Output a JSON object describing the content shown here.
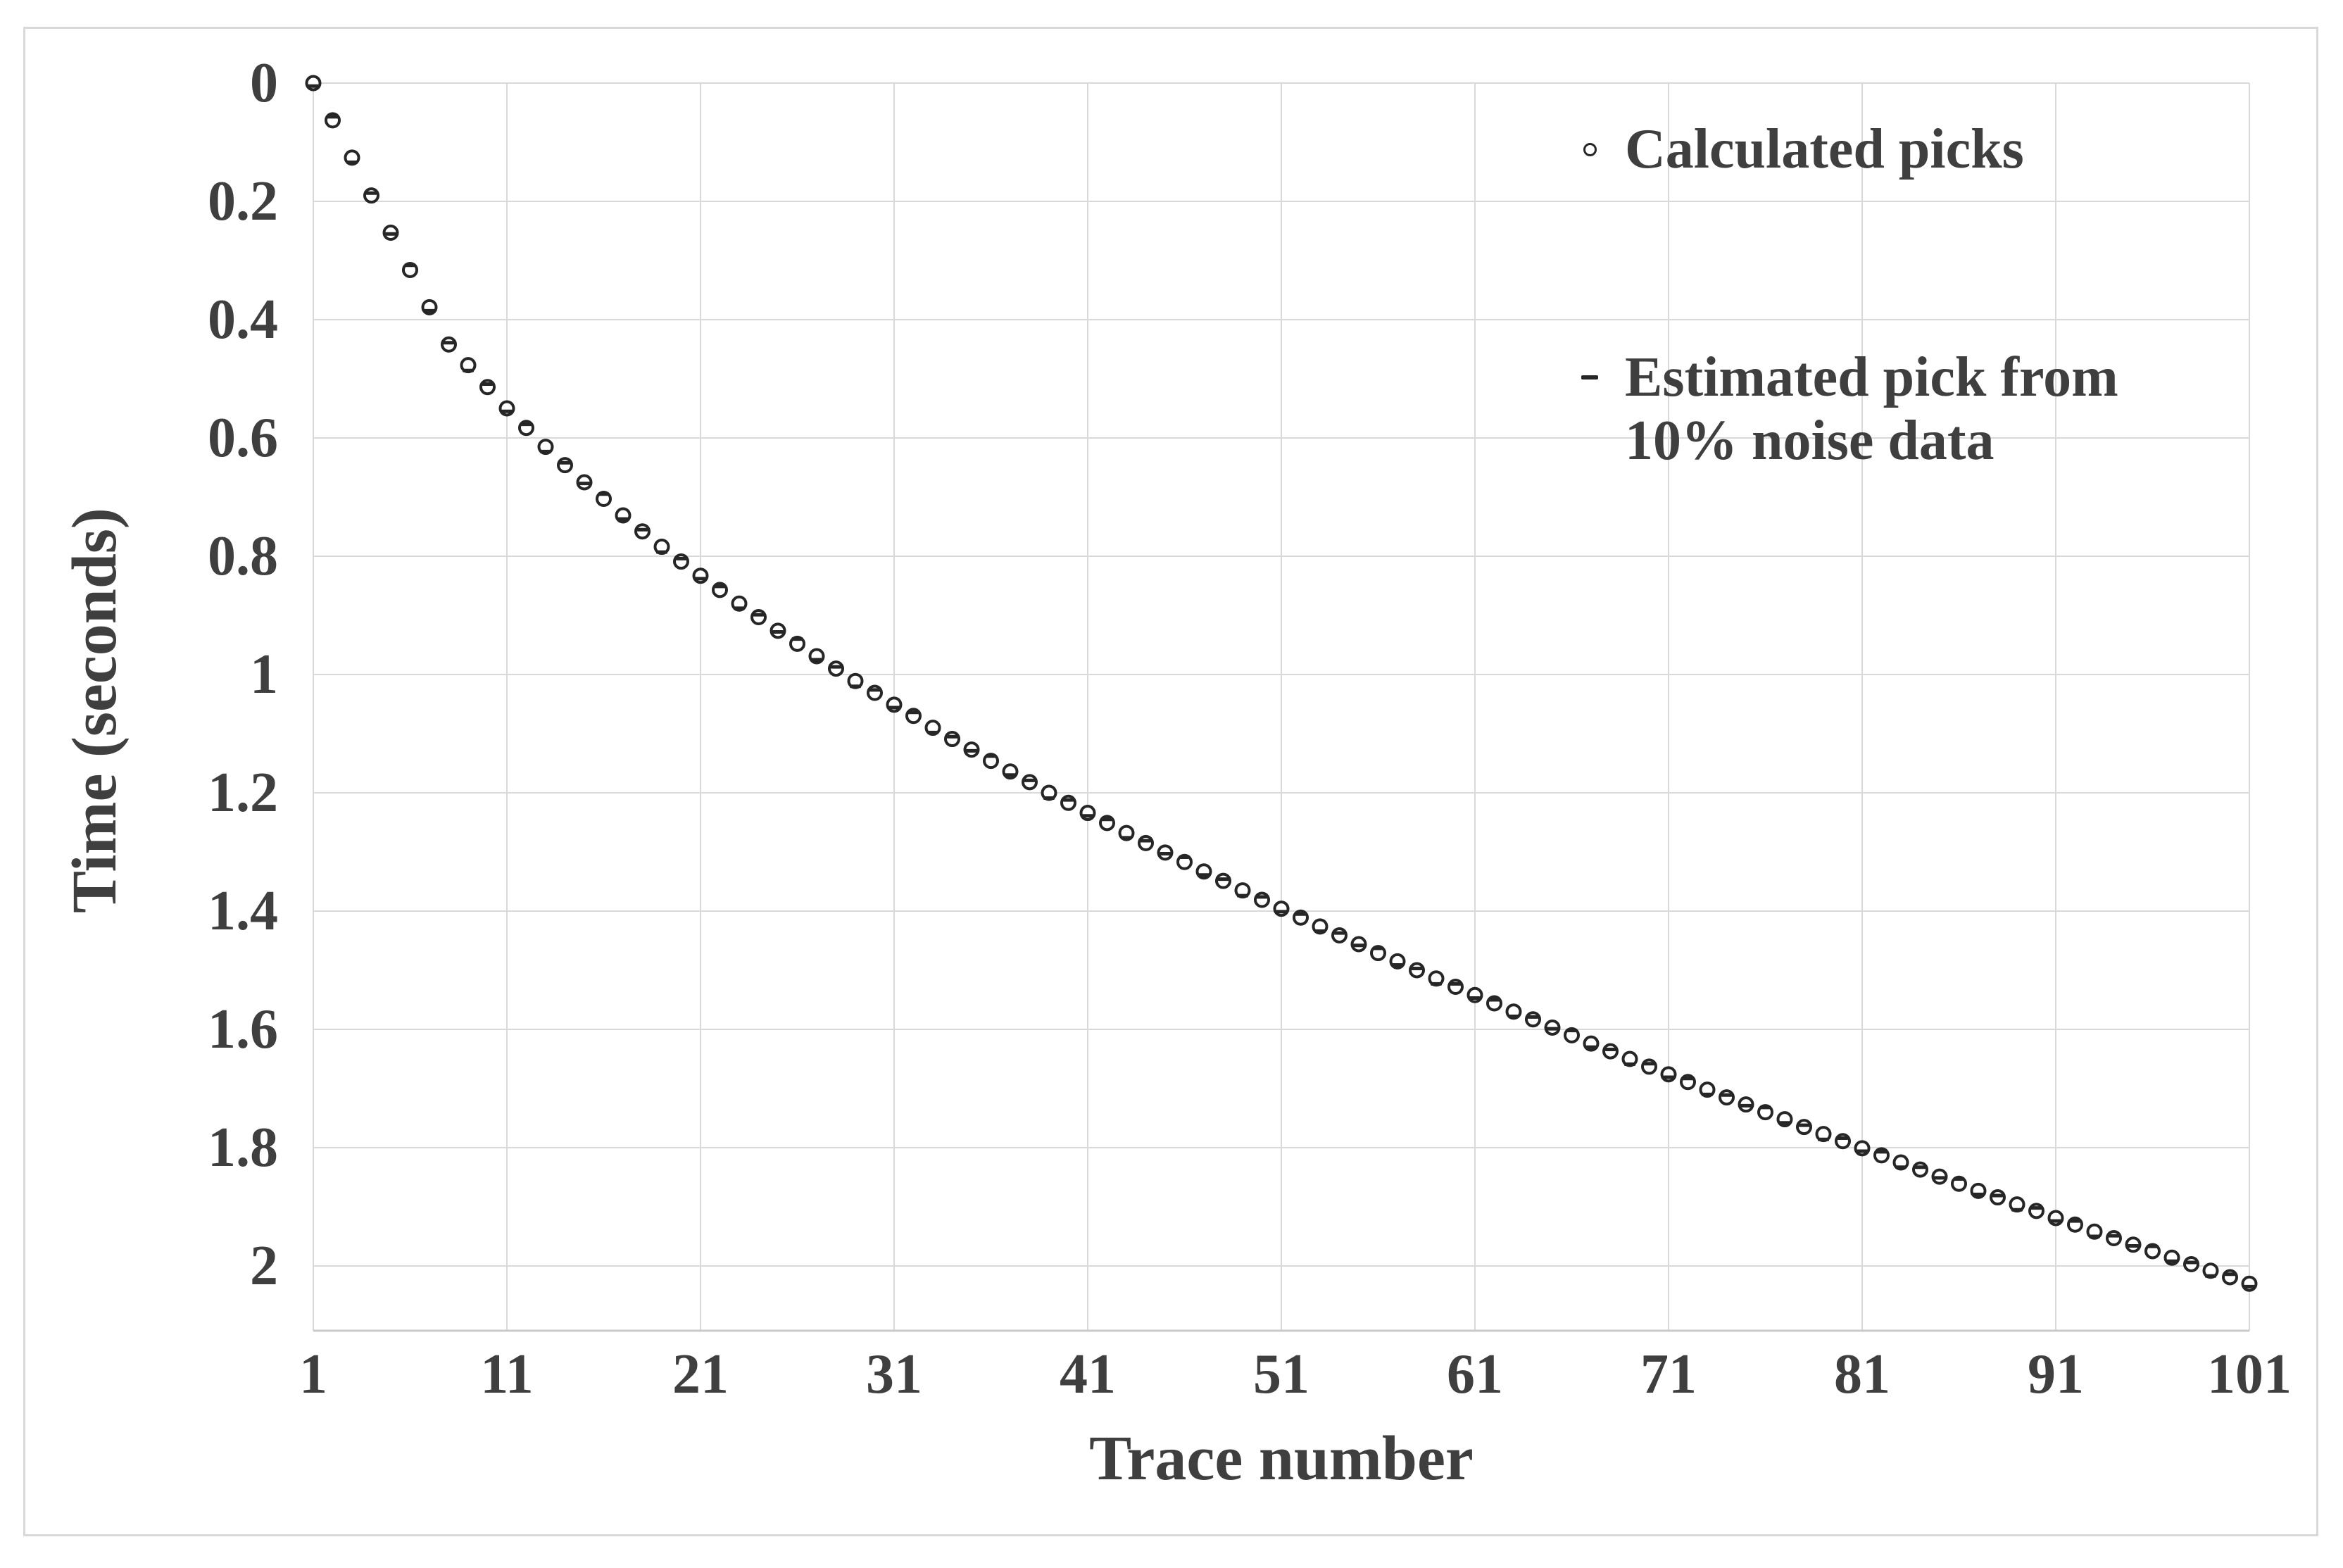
{
  "colors": {
    "background": "#ffffff",
    "frame_border": "#d9d9d9",
    "gridline": "#d9d9d9",
    "axis_line": "#c9c9c9",
    "marker": "#262626",
    "text": "#3f3f3f"
  },
  "legend": {
    "position": "inside top-right",
    "items": [
      {
        "marker": "open-circle",
        "label": "Calculated picks"
      },
      {
        "marker": "dash",
        "label_line1": "Estimated pick from",
        "label_line2": "10% noise data"
      }
    ]
  },
  "chart_data": {
    "type": "scatter",
    "title": "",
    "xlabel": "Trace number",
    "ylabel": "Time (seconds)",
    "grid": "on",
    "legend_position": "inside top-right",
    "x_range": [
      1,
      101
    ],
    "y_range": [
      0,
      2.12
    ],
    "y_axis_direction": "reversed (time increases downward)",
    "x_tick_values": [
      1,
      11,
      21,
      31,
      41,
      51,
      61,
      71,
      81,
      91,
      101
    ],
    "x_tick_labels": [
      "1",
      "11",
      "21",
      "31",
      "41",
      "51",
      "61",
      "71",
      "81",
      "91",
      "101"
    ],
    "y_tick_values": [
      0,
      0.2,
      0.4,
      0.6,
      0.8,
      1,
      1.2,
      1.4,
      1.6,
      1.8,
      2
    ],
    "y_tick_labels": [
      "0",
      "0.2",
      "0.4",
      "0.6",
      "0.8",
      "1",
      "1.2",
      "1.4",
      "1.6",
      "1.8",
      "2"
    ],
    "trace_numbers": [
      1,
      2,
      3,
      4,
      5,
      6,
      7,
      8,
      9,
      10,
      11,
      12,
      13,
      14,
      15,
      16,
      17,
      18,
      19,
      20,
      21,
      22,
      23,
      24,
      25,
      26,
      27,
      28,
      29,
      30,
      31,
      32,
      33,
      34,
      35,
      36,
      37,
      38,
      39,
      40,
      41,
      42,
      43,
      44,
      45,
      46,
      47,
      48,
      49,
      50,
      51,
      52,
      53,
      54,
      55,
      56,
      57,
      58,
      59,
      60,
      61,
      62,
      63,
      64,
      65,
      66,
      67,
      68,
      69,
      70,
      71,
      72,
      73,
      74,
      75,
      76,
      77,
      78,
      79,
      80,
      81,
      82,
      83,
      84,
      85,
      86,
      87,
      88,
      89,
      90,
      91,
      92,
      93,
      94,
      95,
      96,
      97,
      98,
      99,
      100,
      101
    ],
    "series": [
      {
        "name": "Calculated picks",
        "marker": "open-circle",
        "values": [
          0.0,
          0.063,
          0.126,
          0.19,
          0.253,
          0.316,
          0.379,
          0.442,
          0.477,
          0.514,
          0.55,
          0.583,
          0.615,
          0.646,
          0.675,
          0.703,
          0.731,
          0.758,
          0.784,
          0.809,
          0.833,
          0.857,
          0.88,
          0.903,
          0.926,
          0.948,
          0.969,
          0.99,
          1.011,
          1.031,
          1.051,
          1.07,
          1.09,
          1.109,
          1.127,
          1.146,
          1.164,
          1.182,
          1.2,
          1.217,
          1.234,
          1.251,
          1.268,
          1.285,
          1.301,
          1.317,
          1.333,
          1.349,
          1.365,
          1.381,
          1.396,
          1.411,
          1.426,
          1.441,
          1.456,
          1.471,
          1.485,
          1.5,
          1.514,
          1.528,
          1.542,
          1.556,
          1.57,
          1.583,
          1.597,
          1.61,
          1.624,
          1.637,
          1.65,
          1.663,
          1.676,
          1.689,
          1.702,
          1.715,
          1.727,
          1.74,
          1.752,
          1.765,
          1.777,
          1.789,
          1.801,
          1.813,
          1.825,
          1.837,
          1.849,
          1.861,
          1.873,
          1.884,
          1.896,
          1.907,
          1.919,
          1.93,
          1.942,
          1.953,
          1.964,
          1.975,
          1.986,
          1.997,
          2.008,
          2.019,
          2.03
        ]
      },
      {
        "name": "Estimated pick from 10% noise data",
        "marker": "dash",
        "values": [
          0.005,
          0.057,
          0.134,
          0.186,
          0.255,
          0.308,
          0.385,
          0.439,
          0.486,
          0.509,
          0.555,
          0.577,
          0.623,
          0.642,
          0.677,
          0.695,
          0.737,
          0.755,
          0.793,
          0.804,
          0.838,
          0.851,
          0.888,
          0.899,
          0.928,
          0.94,
          0.975,
          0.987,
          1.02,
          1.026,
          1.056,
          1.064,
          1.098,
          1.105,
          1.129,
          1.138,
          1.17,
          1.179,
          1.209,
          1.212,
          1.239,
          1.245,
          1.276,
          1.281,
          1.303,
          1.309,
          1.339,
          1.346,
          1.374,
          1.376,
          1.401,
          1.405,
          1.434,
          1.437,
          1.458,
          1.463,
          1.491,
          1.497,
          1.523,
          1.523,
          1.547,
          1.55,
          1.578,
          1.579,
          1.599,
          1.602,
          1.63,
          1.634,
          1.659,
          1.658,
          1.681,
          1.683,
          1.71,
          1.711,
          1.729,
          1.732,
          1.758,
          1.762,
          1.786,
          1.784,
          1.806,
          1.807,
          1.833,
          1.833,
          1.851,
          1.853,
          1.879,
          1.881,
          1.905,
          1.902,
          1.924,
          1.924,
          1.95,
          1.949,
          1.966,
          1.967,
          1.992,
          1.994,
          2.017,
          2.014,
          2.035
        ]
      }
    ]
  }
}
